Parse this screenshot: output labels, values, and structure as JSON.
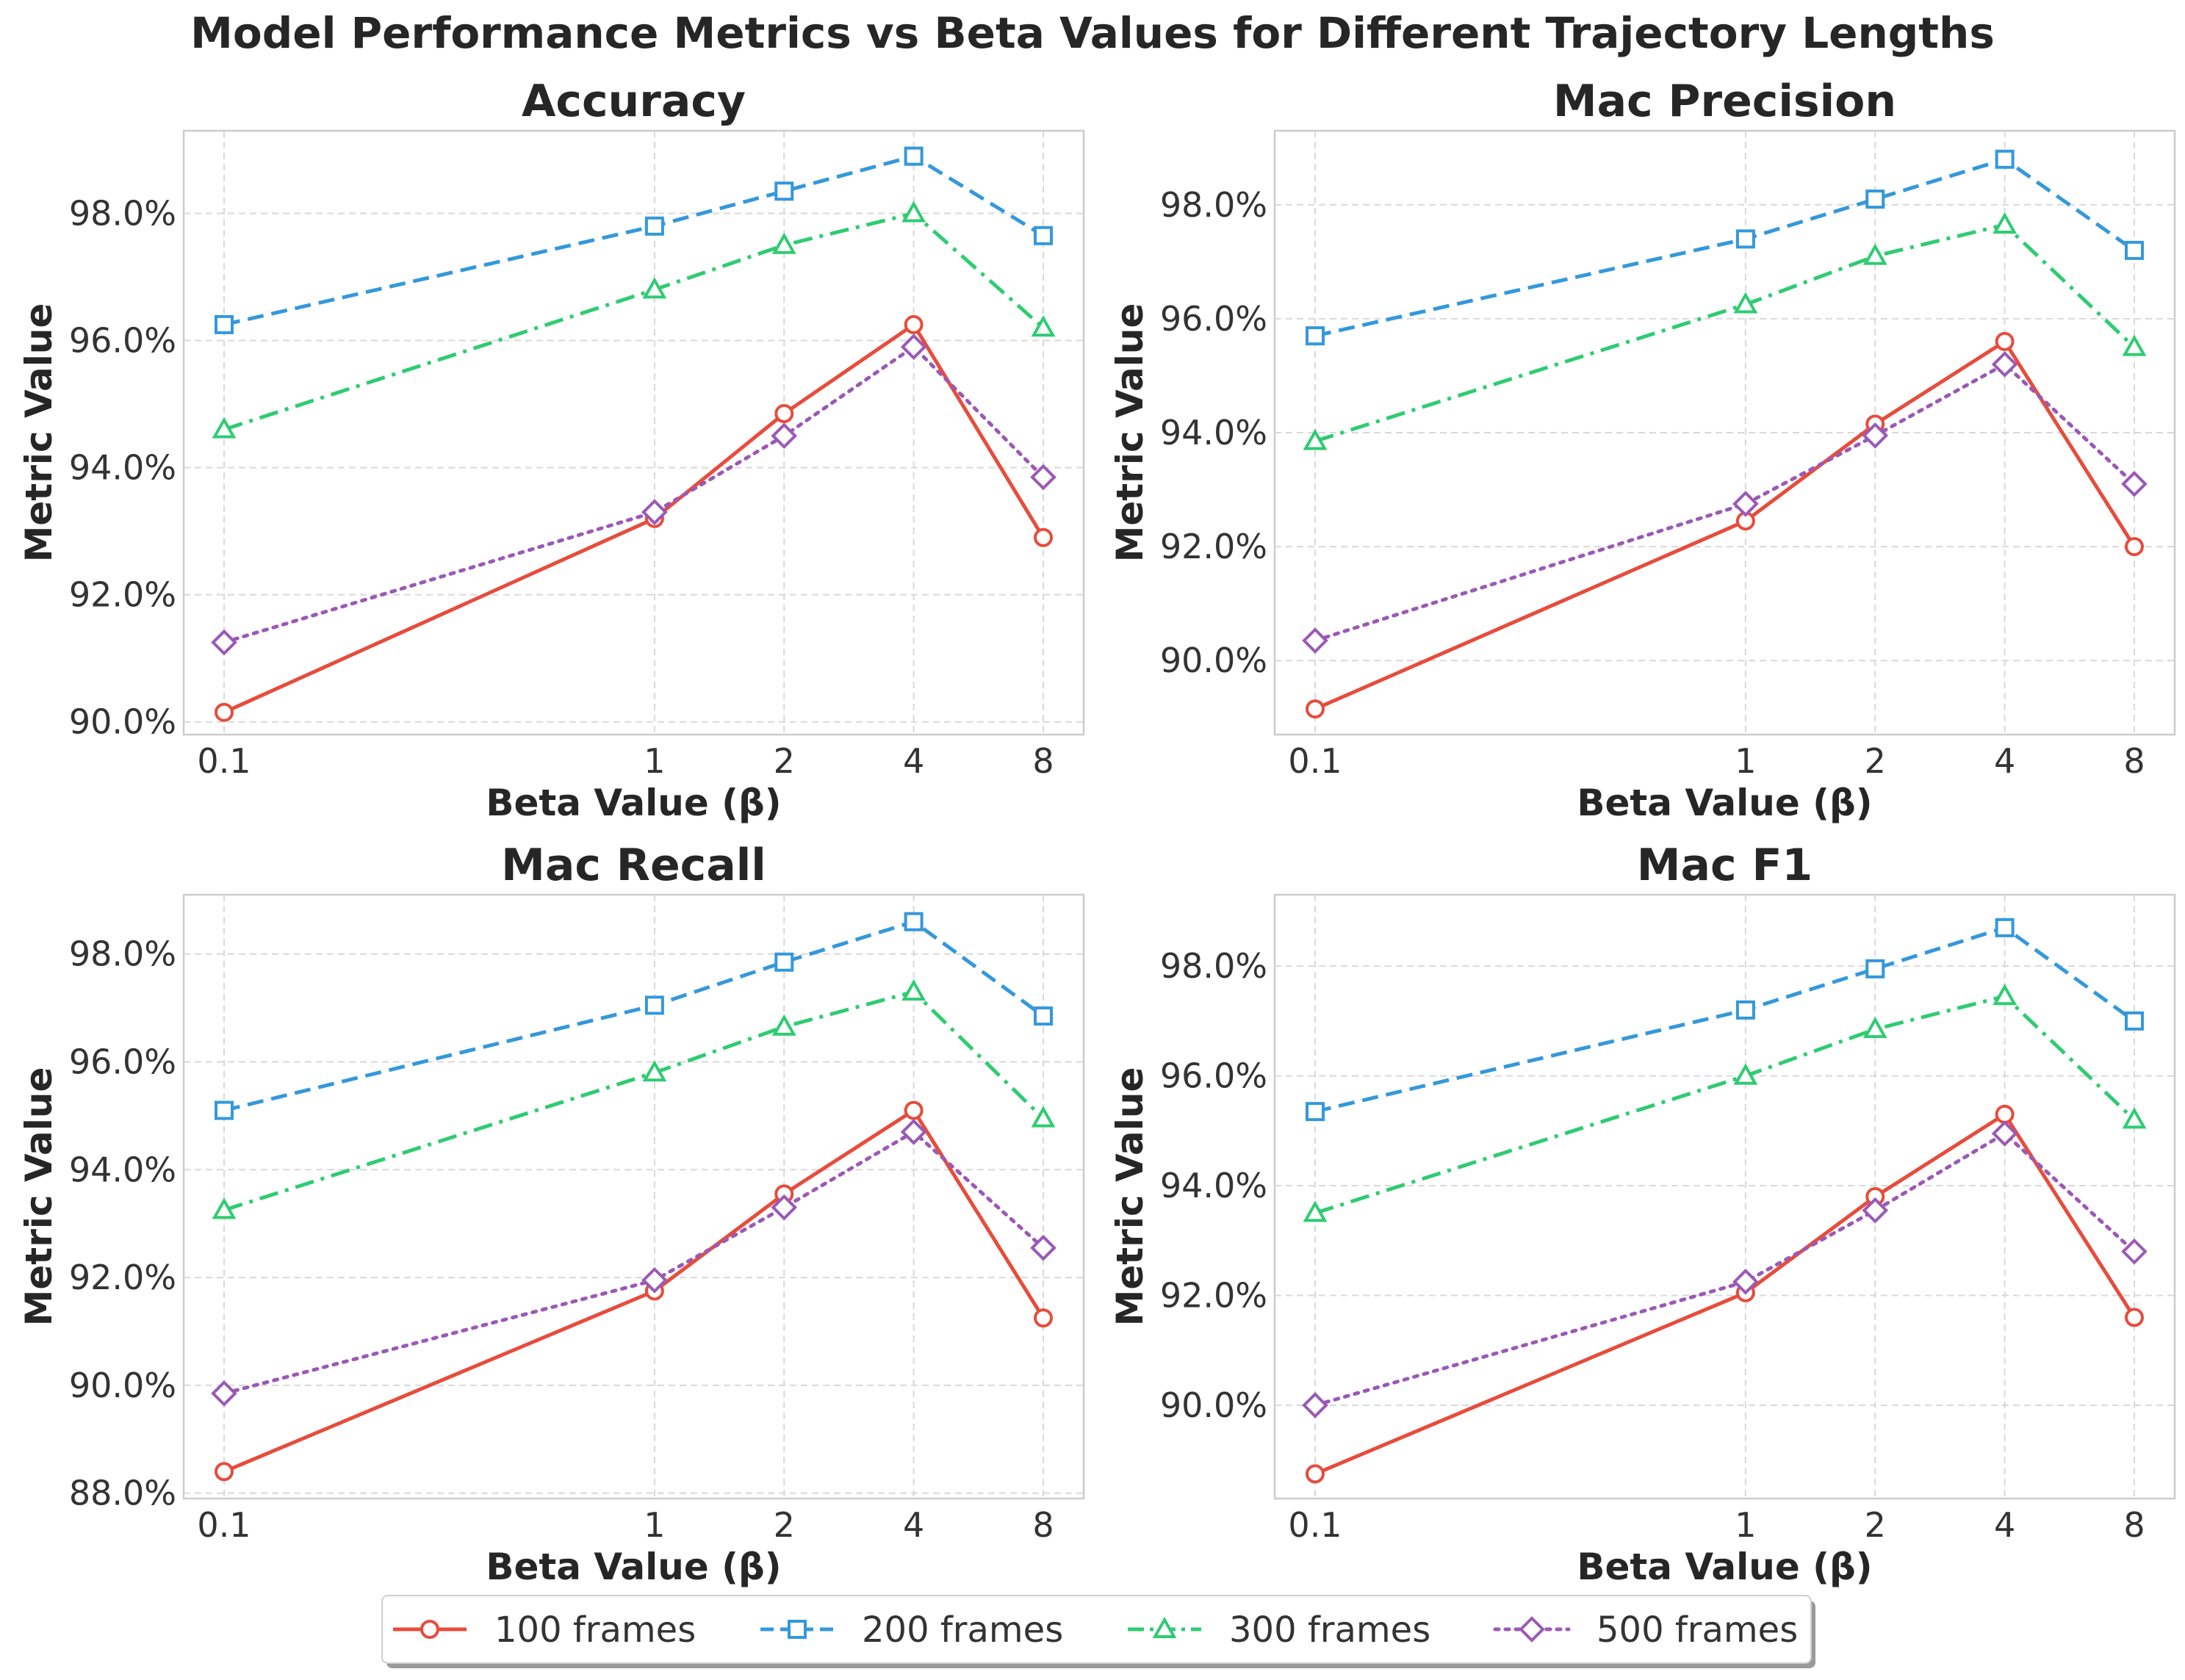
{
  "figure": {
    "title": "Model Performance Metrics vs Beta Values for Different Trajectory Lengths"
  },
  "colors": {
    "s100": "#e74c3c",
    "s200": "#3498db",
    "s300": "#2ecc71",
    "s500": "#9b59b6",
    "grid": "#d9d9d9",
    "frame": "#cccccc",
    "text": "#262626"
  },
  "legend": {
    "items": [
      {
        "label": "100 frames",
        "color": "#e74c3c",
        "marker": "circle",
        "dash": "solid"
      },
      {
        "label": "200 frames",
        "color": "#3498db",
        "marker": "square",
        "dash": "dashed"
      },
      {
        "label": "300 frames",
        "color": "#2ecc71",
        "marker": "triangle",
        "dash": "dashdot"
      },
      {
        "label": "500 frames",
        "color": "#9b59b6",
        "marker": "diamond",
        "dash": "dotted"
      }
    ]
  },
  "chart_data": [
    {
      "type": "line",
      "title": "Accuracy",
      "xlabel": "Beta Value (β)",
      "ylabel": "Metric Value",
      "x": [
        0.1,
        1,
        2,
        4,
        8
      ],
      "x_tick_labels": [
        "0.1",
        "1",
        "2",
        "4",
        "8"
      ],
      "x_scale": "log2-style",
      "ylim": [
        89.8,
        99.3
      ],
      "y_ticks": [
        90,
        92,
        94,
        96,
        98
      ],
      "y_tick_labels": [
        "90.0%",
        "92.0%",
        "94.0%",
        "96.0%",
        "98.0%"
      ],
      "grid": true,
      "series": [
        {
          "name": "100 frames",
          "values": [
            90.15,
            93.2,
            94.85,
            96.25,
            92.9
          ]
        },
        {
          "name": "200 frames",
          "values": [
            96.25,
            97.8,
            98.35,
            98.9,
            97.65
          ]
        },
        {
          "name": "300 frames",
          "values": [
            94.6,
            96.8,
            97.5,
            98.0,
            96.2
          ]
        },
        {
          "name": "500 frames",
          "values": [
            91.25,
            93.3,
            94.5,
            95.9,
            93.85
          ]
        }
      ]
    },
    {
      "type": "line",
      "title": "Mac Precision",
      "xlabel": "Beta Value (β)",
      "ylabel": "Metric Value",
      "x": [
        0.1,
        1,
        2,
        4,
        8
      ],
      "x_tick_labels": [
        "0.1",
        "1",
        "2",
        "4",
        "8"
      ],
      "x_scale": "log2-style",
      "ylim": [
        88.7,
        99.3
      ],
      "y_ticks": [
        90,
        92,
        94,
        96,
        98
      ],
      "y_tick_labels": [
        "90.0%",
        "92.0%",
        "94.0%",
        "96.0%",
        "98.0%"
      ],
      "grid": true,
      "series": [
        {
          "name": "100 frames",
          "values": [
            89.15,
            92.45,
            94.15,
            95.6,
            92.0
          ]
        },
        {
          "name": "200 frames",
          "values": [
            95.7,
            97.4,
            98.1,
            98.8,
            97.2
          ]
        },
        {
          "name": "300 frames",
          "values": [
            93.85,
            96.25,
            97.1,
            97.65,
            95.5
          ]
        },
        {
          "name": "500 frames",
          "values": [
            90.35,
            92.75,
            93.95,
            95.2,
            93.1
          ]
        }
      ]
    },
    {
      "type": "line",
      "title": "Mac Recall",
      "xlabel": "Beta Value (β)",
      "ylabel": "Metric Value",
      "x": [
        0.1,
        1,
        2,
        4,
        8
      ],
      "x_tick_labels": [
        "0.1",
        "1",
        "2",
        "4",
        "8"
      ],
      "x_scale": "log2-style",
      "ylim": [
        87.9,
        99.1
      ],
      "y_ticks": [
        88,
        90,
        92,
        94,
        96,
        98
      ],
      "y_tick_labels": [
        "88.0%",
        "90.0%",
        "92.0%",
        "94.0%",
        "96.0%",
        "98.0%"
      ],
      "grid": true,
      "series": [
        {
          "name": "100 frames",
          "values": [
            88.4,
            91.75,
            93.55,
            95.1,
            91.25
          ]
        },
        {
          "name": "200 frames",
          "values": [
            95.1,
            97.05,
            97.85,
            98.6,
            96.85
          ]
        },
        {
          "name": "300 frames",
          "values": [
            93.25,
            95.8,
            96.65,
            97.3,
            94.95
          ]
        },
        {
          "name": "500 frames",
          "values": [
            89.85,
            91.95,
            93.3,
            94.7,
            92.55
          ]
        }
      ]
    },
    {
      "type": "line",
      "title": "Mac F1",
      "xlabel": "Beta Value (β)",
      "ylabel": "Metric Value",
      "x": [
        0.1,
        1,
        2,
        4,
        8
      ],
      "x_tick_labels": [
        "0.1",
        "1",
        "2",
        "4",
        "8"
      ],
      "x_scale": "log2-style",
      "ylim": [
        88.3,
        99.3
      ],
      "y_ticks": [
        90,
        92,
        94,
        96,
        98
      ],
      "y_tick_labels": [
        "90.0%",
        "92.0%",
        "94.0%",
        "96.0%",
        "98.0%"
      ],
      "grid": true,
      "series": [
        {
          "name": "100 frames",
          "values": [
            88.75,
            92.05,
            93.8,
            95.3,
            91.6
          ]
        },
        {
          "name": "200 frames",
          "values": [
            95.35,
            97.2,
            97.95,
            98.7,
            97.0
          ]
        },
        {
          "name": "300 frames",
          "values": [
            93.5,
            96.0,
            96.85,
            97.45,
            95.2
          ]
        },
        {
          "name": "500 frames",
          "values": [
            90.0,
            92.25,
            93.55,
            94.95,
            92.8
          ]
        }
      ]
    }
  ]
}
